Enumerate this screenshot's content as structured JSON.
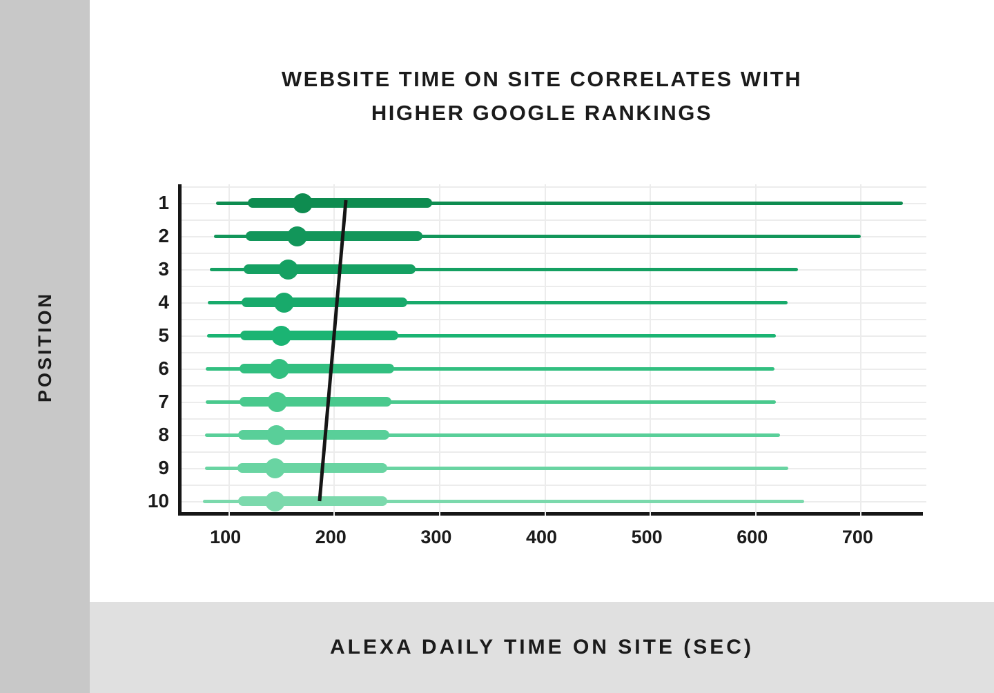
{
  "page": {
    "left_panel_color": "#c8c8c8",
    "footer_band_color": "#e0e0e0",
    "card_color": "#ffffff",
    "title_line1": "WEBSITE TIME ON SITE CORRELATES WITH",
    "title_line2": "HIGHER GOOGLE RANKINGS",
    "y_axis_title": "POSITION",
    "x_axis_title": "ALEXA DAILY TIME ON SITE (SEC)"
  },
  "chart_data": {
    "type": "boxplot",
    "orientation": "horizontal",
    "title": "WEBSITE TIME ON SITE CORRELATES WITH HIGHER GOOGLE RANKINGS",
    "xlabel": "ALEXA DAILY TIME ON SITE (SEC)",
    "ylabel": "POSITION",
    "x_ticks": [
      100,
      200,
      300,
      400,
      500,
      600,
      700
    ],
    "xlim": [
      55,
      762
    ],
    "y_categories": [
      "1",
      "2",
      "3",
      "4",
      "5",
      "6",
      "7",
      "8",
      "9",
      "10"
    ],
    "grid": true,
    "legend": false,
    "axis_color": "#161616",
    "gridline_color": "#ececec",
    "trend_line": {
      "color": "#161616",
      "start": {
        "position": 1,
        "seconds": 211
      },
      "end": {
        "position": 10,
        "seconds": 186
      }
    },
    "rows": [
      {
        "position": 1,
        "whisker_low": 88,
        "box_low": 118,
        "median": 170,
        "box_high": 293,
        "whisker_high": 740,
        "color": "#0e8c50"
      },
      {
        "position": 2,
        "whisker_low": 86,
        "box_low": 116,
        "median": 165,
        "box_high": 284,
        "whisker_high": 700,
        "color": "#12965a"
      },
      {
        "position": 3,
        "whisker_low": 82,
        "box_low": 114,
        "median": 156,
        "box_high": 277,
        "whisker_high": 640,
        "color": "#15a062"
      },
      {
        "position": 4,
        "whisker_low": 80,
        "box_low": 112,
        "median": 152,
        "box_high": 269,
        "whisker_high": 630,
        "color": "#18aa6b"
      },
      {
        "position": 5,
        "whisker_low": 79,
        "box_low": 111,
        "median": 150,
        "box_high": 261,
        "whisker_high": 619,
        "color": "#1bb473"
      },
      {
        "position": 6,
        "whisker_low": 78,
        "box_low": 110,
        "median": 148,
        "box_high": 257,
        "whisker_high": 618,
        "color": "#32bf80"
      },
      {
        "position": 7,
        "whisker_low": 78,
        "box_low": 110,
        "median": 146,
        "box_high": 254,
        "whisker_high": 619,
        "color": "#49c98d"
      },
      {
        "position": 8,
        "whisker_low": 77,
        "box_low": 109,
        "median": 145,
        "box_high": 252,
        "whisker_high": 623,
        "color": "#59cf99"
      },
      {
        "position": 9,
        "whisker_low": 77,
        "box_low": 108,
        "median": 144,
        "box_high": 250,
        "whisker_high": 631,
        "color": "#69d4a2"
      },
      {
        "position": 10,
        "whisker_low": 75,
        "box_low": 109,
        "median": 144,
        "box_high": 250,
        "whisker_high": 646,
        "color": "#7bd9ac"
      }
    ]
  }
}
